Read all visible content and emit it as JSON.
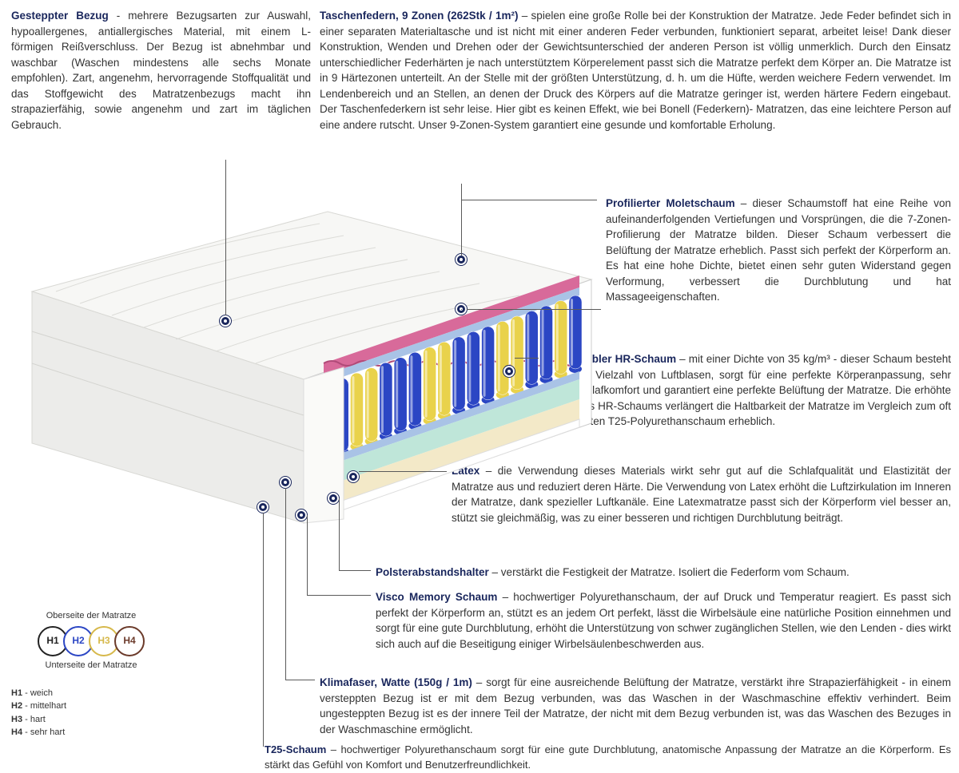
{
  "sections": {
    "cover": {
      "title": "Gesteppter Bezug",
      "body": " - mehrere Bezugsarten zur Auswahl, hypoallergenes, antiallergisches Material, mit einem L-förmigen Reißverschluss. Der Bezug ist abnehmbar und waschbar (Waschen mindestens alle sechs Monate empfohlen). Zart, angenehm, hervorragende Stoffqualität und das Stoffgewicht des Matratzenbezugs macht ihn strapazierfähig, sowie angenehm und zart im täglichen Gebrauch."
    },
    "springs": {
      "title": "Taschenfedern, 9 Zonen (262Stk / 1m²)",
      "body": " – spielen eine große Rolle bei der Konstruktion der Matratze. Jede Feder befindet sich in einer separaten Materialtasche und ist nicht mit einer anderen Feder verbunden, funktioniert separat, arbeitet leise! Dank dieser Konstruktion, Wenden und Drehen oder der Gewichtsunterschied der anderen Person ist völlig unmerklich. Durch den Einsatz unterschiedlicher Federhärten je nach unterstütztem Körperelement passt sich die Matratze perfekt dem Körper an. Die Matratze ist in 9 Härtezonen unterteilt. An der Stelle mit der größten Unterstützung, d. h. um die Hüfte, werden weichere Federn verwendet. Im Lendenbereich und an Stellen, an denen der Druck des Körpers auf die Matratze geringer ist, werden härtere Federn eingebaut. Der Taschenfederkern ist sehr leise. Hier gibt es keinen Effekt, wie bei Bonell (Federkern)- Matratzen, das eine leichtere Person auf eine andere rutscht. Unser 9-Zonen-System garantiert eine gesunde und komfortable Erholung."
    },
    "molet": {
      "title": "Profilierter Moletschaum",
      "body": " – dieser Schaumstoff hat eine Reihe von aufeinanderfolgenden Vertiefungen und Vorsprüngen, die die 7-Zonen-Profilierung der Matratze bilden. Dieser Schaum verbessert die Belüftung der Matratze erheblich. Passt sich perfekt der Körperform an. Es hat eine hohe Dichte, bietet einen sehr guten Widerstand gegen Verformung, verbessert die Durchblutung und hat Massageeigenschaften."
    },
    "hr": {
      "title": "Hochflexibler HR-Schaum",
      "body": " – mit einer Dichte von 35 kg/m³ - dieser Schaum besteht aus einer Vielzahl von Luftblasen, sorgt für eine perfekte Körperanpassung, sehr guten Schlafkomfort und garantiert eine perfekte Belüftung der Matratze. Die erhöhte Dichte des HR-Schaums verlängert die Haltbarkeit der Matratze im Vergleich zum oft verwendeten T25-Polyurethanschaum erheblich."
    },
    "latex": {
      "title": "Latex",
      "body": " – die Verwendung dieses Materials wirkt sehr gut auf die Schlafqualität und Elastizität der Matratze aus und reduziert deren Härte. Die Verwendung von Latex erhöht die Luftzirkulation im Inneren der Matratze, dank spezieller Luftkanäle. Eine Latexmatratze passt sich der Körperform viel besser an, stützt sie gleichmäßig, was zu einer besseren und richtigen Durchblutung beiträgt."
    },
    "spacer": {
      "title": "Polsterabstandshalter",
      "body": " – verstärkt die Festigkeit der Matratze. Isoliert die Federform vom Schaum."
    },
    "visco": {
      "title": "Visco Memory Schaum",
      "body": " – hochwertiger Polyurethanschaum, der auf Druck und Temperatur reagiert. Es passt sich perfekt der Körperform an, stützt es an jedem Ort perfekt, lässt die Wirbelsäule eine natürliche Position einnehmen und sorgt für eine gute Durchblutung, erhöht die Unterstützung von schwer zugänglichen Stellen, wie den Lenden - dies wirkt sich auch auf die Beseitigung einiger Wirbelsäulenbeschwerden aus."
    },
    "klima": {
      "title": "Klimafaser, Watte (150g / 1m)",
      "body": " – sorgt für eine ausreichende Belüftung der Matratze, verstärkt ihre Strapazierfähigkeit - in einem versteppten Bezug ist er mit dem Bezug verbunden, was das Waschen in der Waschmaschine effektiv verhindert. Beim ungesteppten Bezug ist es der innere Teil der Matratze, der nicht mit dem Bezug verbunden ist, was das Waschen des Bezuges in der Waschmaschine ermöglicht."
    },
    "t25": {
      "title": "T25-Schaum",
      "body": " – hochwertiger Polyurethanschaum sorgt für eine gute Durchblutung, anatomische Anpassung der Matratze an die Körperform. Es stärkt das Gefühl von Komfort und Benutzerfreundlichkeit."
    }
  },
  "legend": {
    "top_label": "Oberseite der Matratze",
    "bottom_label": "Unterseite der Matratze",
    "items": [
      {
        "code": "H1",
        "label": "weich",
        "color": "#222222"
      },
      {
        "code": "H2",
        "label": "mittelhart",
        "color": "#2b46c4"
      },
      {
        "code": "H3",
        "label": "hart",
        "color": "#d6b84a"
      },
      {
        "code": "H4",
        "label": "sehr hart",
        "color": "#6b3a2a"
      }
    ]
  },
  "colors": {
    "heading": "#19265c",
    "spring_blue": "#2b46c4",
    "spring_yellow": "#e9d24b",
    "foam_pink": "#d86a9a",
    "foam_mint": "#bfe6d9",
    "foam_cream": "#f3e9c8",
    "foam_blue": "#a9c3e6",
    "cover_white": "#f4f4f2"
  }
}
